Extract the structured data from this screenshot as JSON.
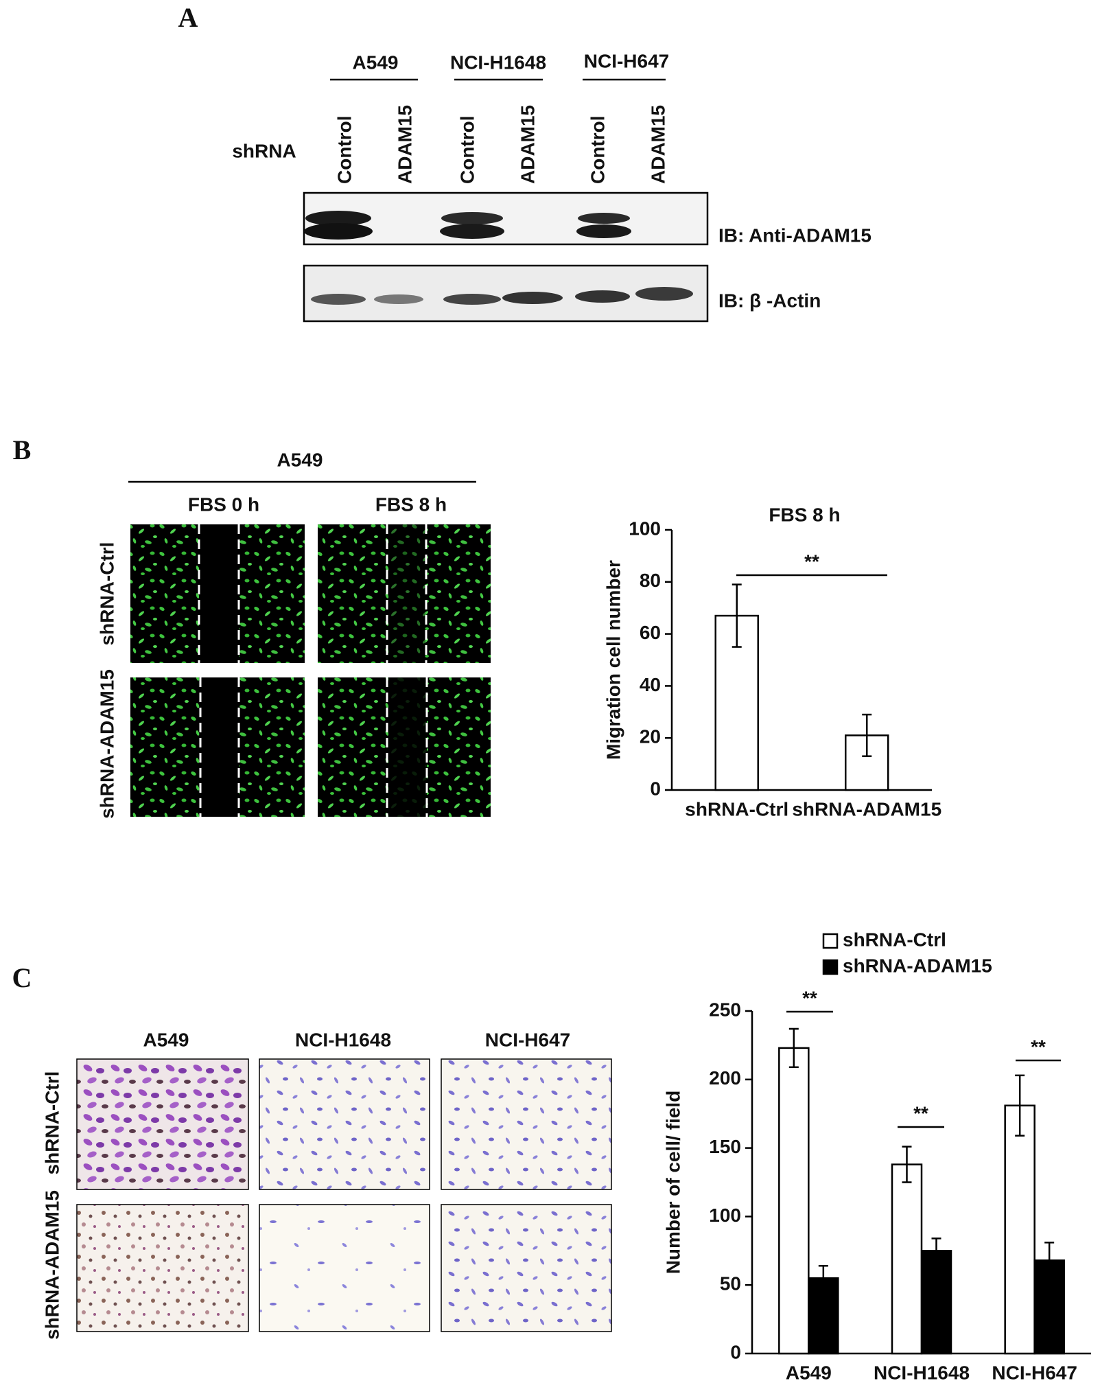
{
  "panel_a": {
    "label": "A",
    "cell_lines": [
      "A549",
      "NCI-H1648",
      "NCI-H647"
    ],
    "row_label": "shRNA",
    "lanes": [
      "Control",
      "ADAM15",
      "Control",
      "ADAM15",
      "Control",
      "ADAM15"
    ],
    "blots": [
      "IB: Anti-ADAM15",
      "IB: β -Actin"
    ]
  },
  "panel_b": {
    "label": "B",
    "cell_line": "A549",
    "columns": [
      "FBS 0 h",
      "FBS 8 h"
    ],
    "rows": [
      "shRNA-Ctrl",
      "shRNA-ADAM15"
    ]
  },
  "panel_c": {
    "label": "C",
    "columns": [
      "A549",
      "NCI-H1648",
      "NCI-H647"
    ],
    "rows": [
      "shRNA-Ctrl",
      "shRNA-ADAM15"
    ]
  },
  "chart_data": [
    {
      "type": "bar",
      "title": "FBS 8 h",
      "y_label": "Migration cell number",
      "categories": [
        "shRNA-Ctrl",
        "shRNA-ADAM15"
      ],
      "values": [
        67,
        21
      ],
      "errors": [
        12,
        8
      ],
      "color": "#ffffff",
      "ylim": [
        0,
        100
      ],
      "yticks": [
        0,
        20,
        40,
        60,
        80,
        100
      ],
      "annotations": [
        "**"
      ]
    },
    {
      "type": "bar",
      "y_label": "Number of cell/ field",
      "categories": [
        "A549",
        "NCI-H1648",
        "NCI-H647"
      ],
      "series": [
        {
          "name": "shRNA-Ctrl",
          "color": "#ffffff",
          "values": [
            223,
            138,
            181
          ],
          "errors": [
            14,
            13,
            22
          ]
        },
        {
          "name": "shRNA-ADAM15",
          "color": "#000000",
          "values": [
            55,
            75,
            68
          ],
          "errors": [
            9,
            9,
            13
          ]
        }
      ],
      "ylim": [
        0,
        250
      ],
      "yticks": [
        0,
        50,
        100,
        150,
        200,
        250
      ],
      "annotations": [
        "**",
        "**",
        "**"
      ]
    }
  ]
}
